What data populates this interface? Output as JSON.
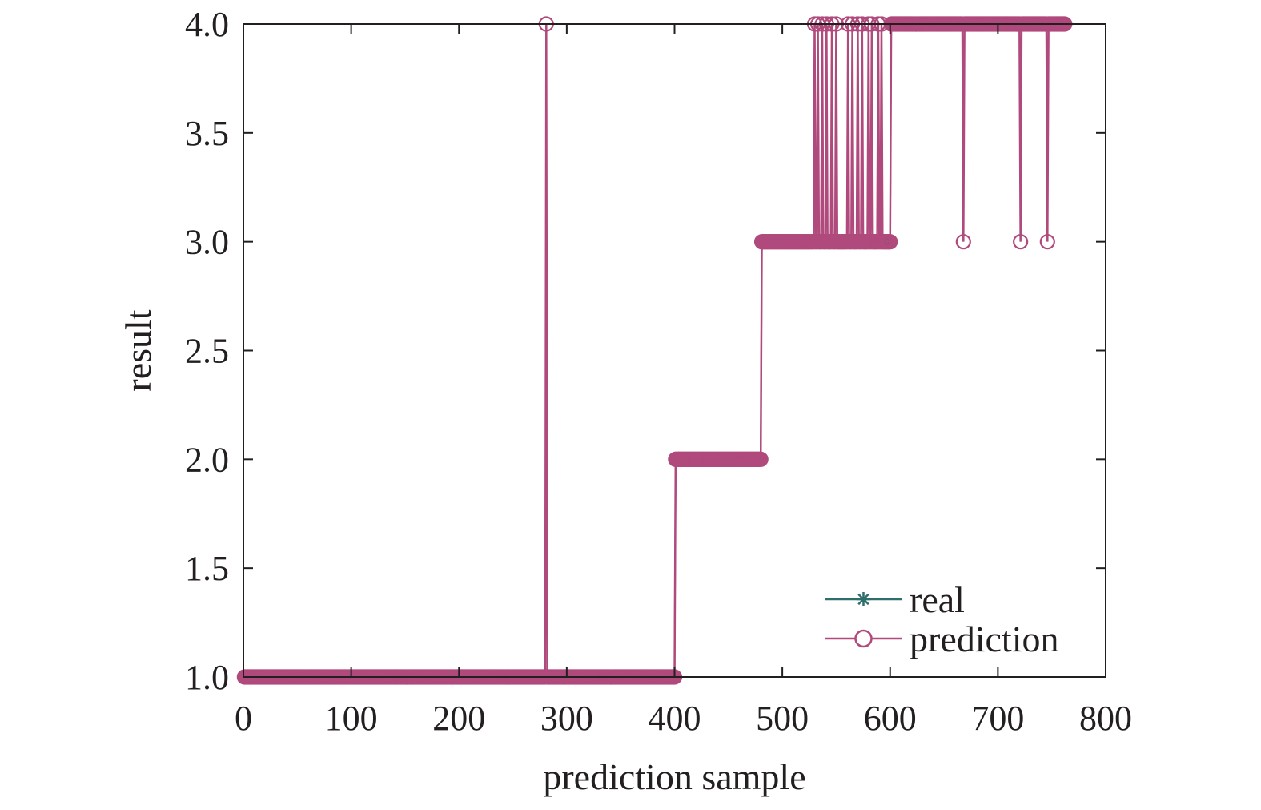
{
  "chart_data": {
    "type": "line",
    "title": "",
    "xlabel": "prediction sample",
    "ylabel": "result",
    "xlim": [
      0,
      800
    ],
    "ylim": [
      1.0,
      4.0
    ],
    "xticks": [
      "0",
      "100",
      "200",
      "300",
      "400",
      "500",
      "600",
      "700",
      "800"
    ],
    "yticks": [
      "1.0",
      "1.5",
      "2.0",
      "2.5",
      "3.0",
      "3.5",
      "4.0"
    ],
    "grid": false,
    "legend_position": "bottom-right",
    "colors": {
      "real": "#2e6f6b",
      "prediction": "#b0497c",
      "axis": "#231f20"
    },
    "series": [
      {
        "name": "real",
        "marker": "asterisk",
        "segments": [
          {
            "x_start": 1,
            "x_end": 400,
            "y": 1
          },
          {
            "x_start": 401,
            "x_end": 480,
            "y": 2
          },
          {
            "x_start": 481,
            "x_end": 600,
            "y": 3
          },
          {
            "x_start": 601,
            "x_end": 762,
            "y": 4
          }
        ]
      },
      {
        "name": "prediction",
        "marker": "circle",
        "segments": [
          {
            "x_start": 1,
            "x_end": 400,
            "y": 1
          },
          {
            "x_start": 401,
            "x_end": 480,
            "y": 2
          },
          {
            "x_start": 481,
            "x_end": 600,
            "y": 3
          },
          {
            "x_start": 601,
            "x_end": 762,
            "y": 4
          }
        ],
        "outliers": [
          {
            "x": 281,
            "y": 4
          },
          {
            "x": 530,
            "y": 4
          },
          {
            "x": 533,
            "y": 4
          },
          {
            "x": 537,
            "y": 4
          },
          {
            "x": 541,
            "y": 4
          },
          {
            "x": 546,
            "y": 4
          },
          {
            "x": 550,
            "y": 4
          },
          {
            "x": 561,
            "y": 4
          },
          {
            "x": 565,
            "y": 4
          },
          {
            "x": 570,
            "y": 4
          },
          {
            "x": 574,
            "y": 4
          },
          {
            "x": 580,
            "y": 4
          },
          {
            "x": 583,
            "y": 4
          },
          {
            "x": 589,
            "y": 4
          },
          {
            "x": 592,
            "y": 4
          },
          {
            "x": 668,
            "y": 3
          },
          {
            "x": 721,
            "y": 3
          },
          {
            "x": 746,
            "y": 3
          }
        ]
      }
    ]
  }
}
